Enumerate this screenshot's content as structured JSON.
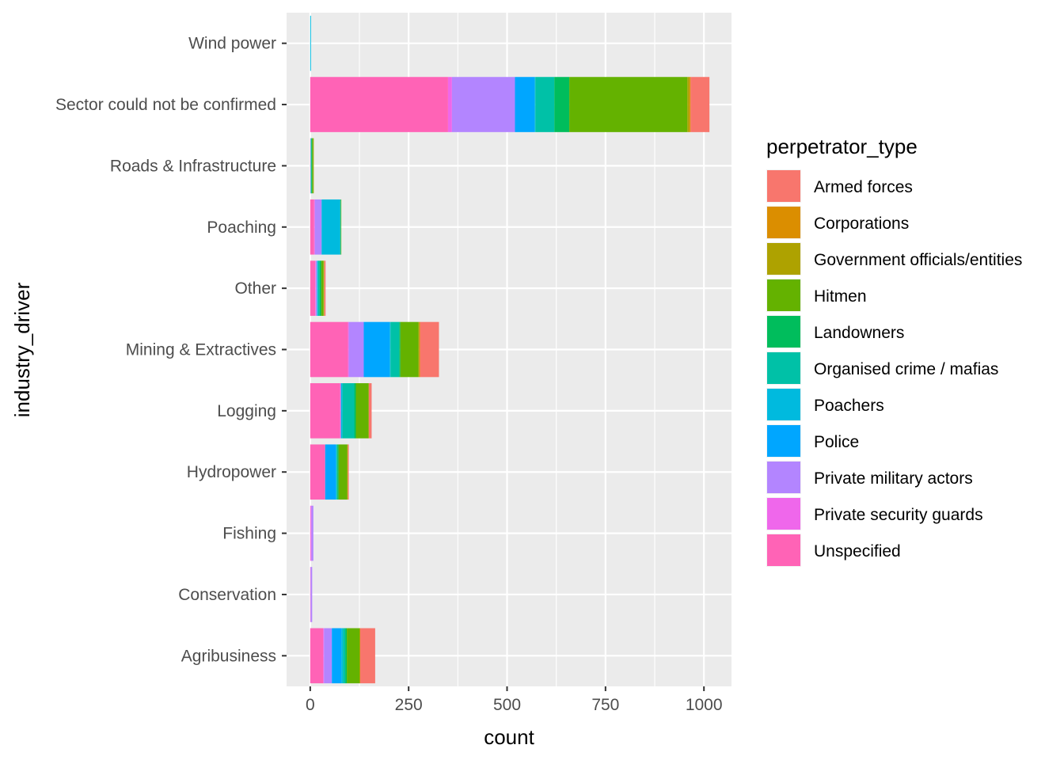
{
  "chart_data": {
    "type": "bar",
    "orientation": "horizontal",
    "stacked": true,
    "xlabel": "count",
    "ylabel": "industry_driver",
    "xlim": [
      -60,
      1070
    ],
    "xticks": [
      0,
      250,
      500,
      750,
      1000
    ],
    "xtick_labels": [
      "0",
      "250",
      "500",
      "750",
      "1000"
    ],
    "grid": true,
    "legend_position": "right",
    "legend_title": "perpetrator_type",
    "categories": [
      "Agribusiness",
      "Conservation",
      "Fishing",
      "Hydropower",
      "Logging",
      "Mining & Extractives",
      "Other",
      "Poaching",
      "Roads & Infrastructure",
      "Sector could not be confirmed",
      "Wind power"
    ],
    "series": [
      {
        "name": "Armed forces",
        "color": "#F8766D",
        "values": [
          38,
          0,
          0,
          2,
          7,
          48,
          3,
          0,
          0,
          48,
          0
        ]
      },
      {
        "name": "Corporations",
        "color": "#DB8E00",
        "values": [
          0,
          0,
          0,
          1,
          0,
          2,
          1,
          0,
          0,
          3,
          0
        ]
      },
      {
        "name": "Government officials/entities",
        "color": "#AEA200",
        "values": [
          2,
          0,
          0,
          1,
          1,
          2,
          1,
          0,
          1,
          5,
          0
        ]
      },
      {
        "name": "Hitmen",
        "color": "#64B200",
        "values": [
          32,
          0,
          0,
          22,
          32,
          46,
          6,
          1,
          3,
          300,
          0
        ]
      },
      {
        "name": "Landowners",
        "color": "#00BD5C",
        "values": [
          4,
          0,
          0,
          3,
          4,
          3,
          4,
          1,
          2,
          38,
          0
        ]
      },
      {
        "name": "Organised crime / mafias",
        "color": "#00C1A7",
        "values": [
          6,
          0,
          0,
          2,
          30,
          22,
          4,
          1,
          1,
          48,
          0
        ]
      },
      {
        "name": "Poachers",
        "color": "#00BADE",
        "values": [
          4,
          0,
          0,
          2,
          4,
          2,
          2,
          47,
          1,
          2,
          2
        ]
      },
      {
        "name": "Police",
        "color": "#00A6FF",
        "values": [
          24,
          0,
          0,
          27,
          0,
          66,
          1,
          0,
          0,
          50,
          0
        ]
      },
      {
        "name": "Private military actors",
        "color": "#B385FF",
        "values": [
          20,
          4,
          5,
          0,
          0,
          38,
          3,
          17,
          0,
          160,
          0
        ]
      },
      {
        "name": "Private security guards",
        "color": "#EF67EB",
        "values": [
          2,
          0,
          2,
          0,
          2,
          2,
          1,
          2,
          0,
          10,
          0
        ]
      },
      {
        "name": "Unspecified",
        "color": "#FF63B6",
        "values": [
          33,
          1,
          1,
          38,
          76,
          96,
          13,
          10,
          1,
          350,
          0
        ]
      }
    ]
  }
}
